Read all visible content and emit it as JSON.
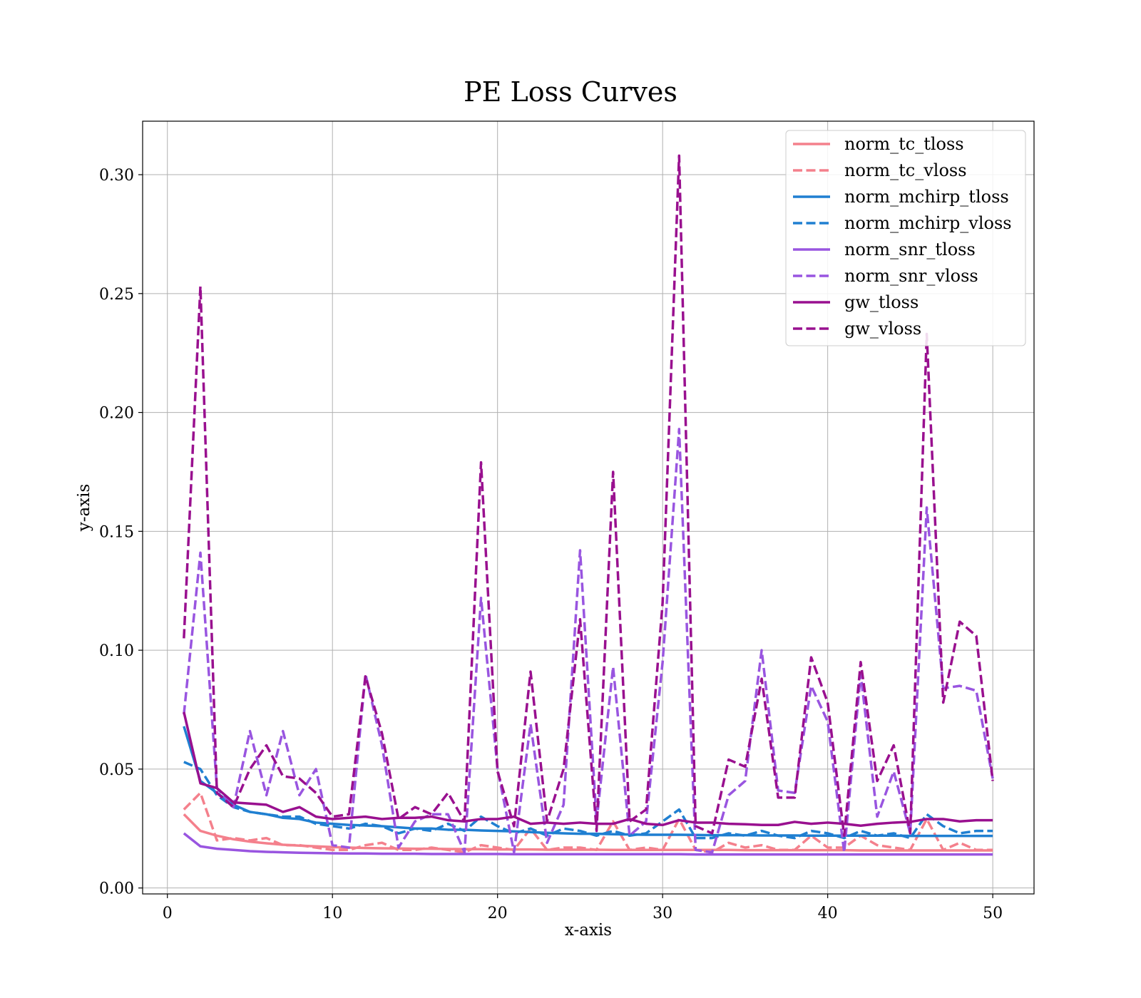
{
  "chart_data": {
    "type": "line",
    "title": "PE Loss Curves",
    "xlabel": "x-axis",
    "ylabel": "y-axis",
    "xlim": [
      -1.5,
      52.5
    ],
    "ylim": [
      -0.0025,
      0.3225
    ],
    "xticks": [
      0,
      10,
      20,
      30,
      40,
      50
    ],
    "yticks": [
      0.0,
      0.05,
      0.1,
      0.15,
      0.2,
      0.25,
      0.3
    ],
    "xtick_labels": [
      "0",
      "10",
      "20",
      "30",
      "40",
      "50"
    ],
    "ytick_labels": [
      "0.00",
      "0.05",
      "0.10",
      "0.15",
      "0.20",
      "0.25",
      "0.30"
    ],
    "grid": true,
    "legend_position": "top-right",
    "x": [
      1,
      2,
      3,
      4,
      5,
      6,
      7,
      8,
      9,
      10,
      11,
      12,
      13,
      14,
      15,
      16,
      17,
      18,
      19,
      20,
      21,
      22,
      23,
      24,
      25,
      26,
      27,
      28,
      29,
      30,
      31,
      32,
      33,
      34,
      35,
      36,
      37,
      38,
      39,
      40,
      41,
      42,
      43,
      44,
      45,
      46,
      47,
      48,
      49,
      50
    ],
    "series": [
      {
        "name": "norm_tc_tloss",
        "color": "#f4808c",
        "dash": "solid",
        "values": [
          0.031,
          0.024,
          0.022,
          0.0205,
          0.0195,
          0.0188,
          0.0182,
          0.0178,
          0.0175,
          0.0172,
          0.017,
          0.0168,
          0.0167,
          0.0166,
          0.0165,
          0.0165,
          0.0164,
          0.0163,
          0.0163,
          0.0162,
          0.0162,
          0.0162,
          0.0161,
          0.0161,
          0.0161,
          0.0161,
          0.016,
          0.016,
          0.016,
          0.016,
          0.016,
          0.016,
          0.016,
          0.016,
          0.0159,
          0.0159,
          0.0159,
          0.0159,
          0.0159,
          0.0159,
          0.0159,
          0.0158,
          0.0158,
          0.0158,
          0.0158,
          0.0158,
          0.0158,
          0.0158,
          0.0158,
          0.0158
        ]
      },
      {
        "name": "norm_tc_vloss",
        "color": "#f4808c",
        "dash": "dashed",
        "values": [
          0.033,
          0.04,
          0.02,
          0.021,
          0.02,
          0.021,
          0.018,
          0.018,
          0.017,
          0.016,
          0.016,
          0.018,
          0.019,
          0.016,
          0.016,
          0.017,
          0.016,
          0.015,
          0.018,
          0.017,
          0.016,
          0.025,
          0.016,
          0.017,
          0.017,
          0.016,
          0.028,
          0.016,
          0.017,
          0.016,
          0.029,
          0.016,
          0.015,
          0.019,
          0.017,
          0.018,
          0.016,
          0.016,
          0.022,
          0.017,
          0.017,
          0.022,
          0.018,
          0.017,
          0.016,
          0.029,
          0.016,
          0.019,
          0.016,
          0.016
        ]
      },
      {
        "name": "norm_mchirp_tloss",
        "color": "#1f7fd1",
        "dash": "solid",
        "values": [
          0.068,
          0.045,
          0.04,
          0.035,
          0.032,
          0.031,
          0.0295,
          0.029,
          0.0275,
          0.027,
          0.0265,
          0.0263,
          0.026,
          0.0255,
          0.025,
          0.025,
          0.0245,
          0.0245,
          0.0242,
          0.024,
          0.0238,
          0.0235,
          0.0232,
          0.023,
          0.0228,
          0.0228,
          0.0226,
          0.0225,
          0.0224,
          0.0224,
          0.0224,
          0.0223,
          0.0222,
          0.0222,
          0.0222,
          0.0221,
          0.0221,
          0.0221,
          0.022,
          0.022,
          0.022,
          0.022,
          0.022,
          0.022,
          0.0219,
          0.0219,
          0.0219,
          0.0219,
          0.0219,
          0.0219
        ]
      },
      {
        "name": "norm_mchirp_vloss",
        "color": "#1f7fd1",
        "dash": "dashed",
        "values": [
          0.053,
          0.05,
          0.039,
          0.034,
          0.032,
          0.031,
          0.03,
          0.03,
          0.027,
          0.026,
          0.025,
          0.027,
          0.026,
          0.023,
          0.025,
          0.024,
          0.027,
          0.024,
          0.03,
          0.026,
          0.023,
          0.025,
          0.022,
          0.025,
          0.024,
          0.022,
          0.024,
          0.022,
          0.023,
          0.028,
          0.033,
          0.021,
          0.021,
          0.023,
          0.022,
          0.024,
          0.022,
          0.021,
          0.024,
          0.023,
          0.021,
          0.024,
          0.022,
          0.023,
          0.021,
          0.031,
          0.026,
          0.023,
          0.024,
          0.024
        ]
      },
      {
        "name": "norm_snr_tloss",
        "color": "#9955e0",
        "dash": "solid",
        "values": [
          0.023,
          0.0175,
          0.0165,
          0.016,
          0.0155,
          0.0152,
          0.015,
          0.0148,
          0.0147,
          0.0146,
          0.0145,
          0.0145,
          0.0144,
          0.0144,
          0.0144,
          0.0143,
          0.0143,
          0.0143,
          0.0143,
          0.0143,
          0.0142,
          0.0142,
          0.0142,
          0.0142,
          0.0142,
          0.0142,
          0.0142,
          0.0142,
          0.0142,
          0.0142,
          0.0142,
          0.0141,
          0.0141,
          0.0141,
          0.0141,
          0.0141,
          0.0141,
          0.0141,
          0.0141,
          0.0141,
          0.0141,
          0.0141,
          0.0141,
          0.0141,
          0.0141,
          0.0141,
          0.0141,
          0.0141,
          0.0141,
          0.0141
        ]
      },
      {
        "name": "norm_snr_vloss",
        "color": "#9955e0",
        "dash": "dashed",
        "values": [
          0.073,
          0.141,
          0.042,
          0.034,
          0.066,
          0.039,
          0.066,
          0.039,
          0.05,
          0.018,
          0.017,
          0.09,
          0.06,
          0.017,
          0.028,
          0.031,
          0.031,
          0.015,
          0.122,
          0.05,
          0.015,
          0.069,
          0.019,
          0.035,
          0.142,
          0.028,
          0.093,
          0.022,
          0.028,
          0.095,
          0.193,
          0.016,
          0.015,
          0.039,
          0.045,
          0.1,
          0.041,
          0.04,
          0.085,
          0.07,
          0.015,
          0.09,
          0.03,
          0.049,
          0.023,
          0.16,
          0.084,
          0.085,
          0.083,
          0.046
        ]
      },
      {
        "name": "gw_tloss",
        "color": "#99108f",
        "dash": "solid",
        "values": [
          0.074,
          0.044,
          0.042,
          0.036,
          0.0355,
          0.035,
          0.032,
          0.034,
          0.03,
          0.029,
          0.0295,
          0.03,
          0.029,
          0.0295,
          0.0295,
          0.03,
          0.0285,
          0.028,
          0.029,
          0.029,
          0.03,
          0.027,
          0.0275,
          0.027,
          0.0275,
          0.027,
          0.027,
          0.029,
          0.027,
          0.0265,
          0.0285,
          0.0275,
          0.0275,
          0.027,
          0.0268,
          0.0265,
          0.0265,
          0.0278,
          0.027,
          0.0275,
          0.027,
          0.0262,
          0.027,
          0.0275,
          0.0278,
          0.029,
          0.029,
          0.028,
          0.0285,
          0.0285
        ]
      },
      {
        "name": "gw_vloss",
        "color": "#99108f",
        "dash": "dashed",
        "values": [
          0.105,
          0.253,
          0.04,
          0.034,
          0.05,
          0.06,
          0.047,
          0.046,
          0.04,
          0.03,
          0.031,
          0.089,
          0.065,
          0.029,
          0.034,
          0.031,
          0.04,
          0.028,
          0.179,
          0.049,
          0.026,
          0.091,
          0.028,
          0.05,
          0.113,
          0.024,
          0.175,
          0.028,
          0.033,
          0.12,
          0.308,
          0.026,
          0.023,
          0.054,
          0.051,
          0.088,
          0.038,
          0.038,
          0.097,
          0.078,
          0.022,
          0.095,
          0.045,
          0.06,
          0.023,
          0.233,
          0.078,
          0.112,
          0.106,
          0.045
        ]
      }
    ]
  }
}
